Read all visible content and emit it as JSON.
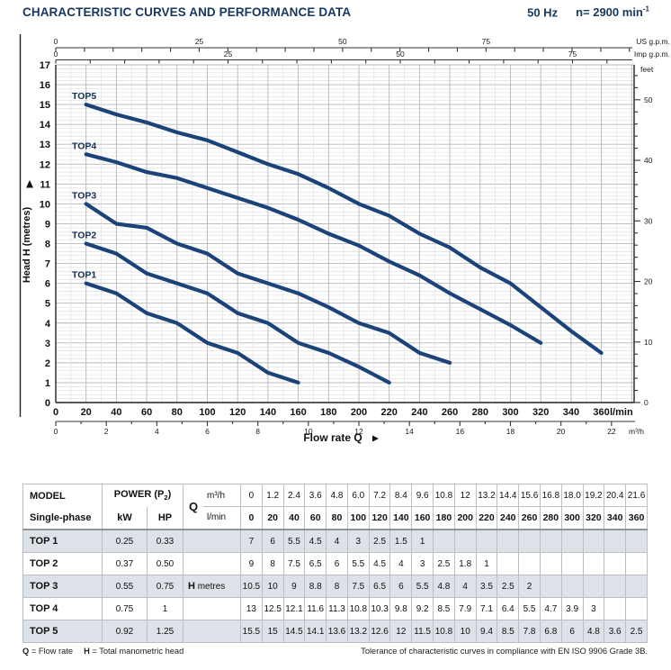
{
  "header": {
    "title": "CHARACTERISTIC CURVES AND PERFORMANCE DATA",
    "frequency": "50 Hz",
    "speed": "n= 2900 min",
    "speed_sup": "-1"
  },
  "chart_data": {
    "type": "line",
    "xlabel": "Flow rate Q",
    "x_axis_main": {
      "label": "l/min",
      "ticks": [
        0,
        20,
        40,
        60,
        80,
        100,
        120,
        140,
        160,
        180,
        200,
        220,
        240,
        260,
        280,
        300,
        320,
        340,
        360
      ],
      "range": [
        0,
        382
      ]
    },
    "x_axis_m3h": {
      "label": "m³/h",
      "ticks": [
        0,
        2,
        4,
        6,
        8,
        10,
        12,
        14,
        16,
        18,
        20,
        22
      ],
      "lmin_per_unit": 16.6667
    },
    "x_axis_usgpm": {
      "label": "US g.p.m.",
      "ticks": [
        0,
        25,
        50,
        75
      ],
      "lmin_per_unit": 3.785
    },
    "x_axis_impgpm": {
      "label": "Imp g.p.m.",
      "ticks": [
        0,
        25,
        50,
        75
      ],
      "lmin_per_unit": 4.546
    },
    "y_axis": {
      "label": "Head H (metres)",
      "ticks": [
        0,
        1,
        2,
        3,
        4,
        5,
        6,
        7,
        8,
        9,
        10,
        11,
        12,
        13,
        14,
        15,
        16,
        17
      ],
      "range": [
        0,
        17
      ]
    },
    "y_axis_right": {
      "label": "feet",
      "ticks": [
        0,
        10,
        20,
        30,
        40,
        50
      ],
      "feet_per_metre": 3.2808
    },
    "grid": {
      "x_minor": 10,
      "x_major": 20,
      "y_minor": 0.2,
      "y_major": 1
    },
    "series": [
      {
        "name": "TOP1",
        "points": [
          [
            20,
            6
          ],
          [
            40,
            5.5
          ],
          [
            60,
            4.5
          ],
          [
            80,
            4
          ],
          [
            100,
            3
          ],
          [
            120,
            2.5
          ],
          [
            140,
            1.5
          ],
          [
            160,
            1
          ]
        ]
      },
      {
        "name": "TOP2",
        "points": [
          [
            20,
            8
          ],
          [
            40,
            7.5
          ],
          [
            60,
            6.5
          ],
          [
            80,
            6
          ],
          [
            100,
            5.5
          ],
          [
            120,
            4.5
          ],
          [
            140,
            4
          ],
          [
            160,
            3
          ],
          [
            180,
            2.5
          ],
          [
            200,
            1.8
          ],
          [
            220,
            1
          ]
        ]
      },
      {
        "name": "TOP3",
        "points": [
          [
            20,
            10
          ],
          [
            40,
            9
          ],
          [
            60,
            8.8
          ],
          [
            80,
            8
          ],
          [
            100,
            7.5
          ],
          [
            120,
            6.5
          ],
          [
            140,
            6
          ],
          [
            160,
            5.5
          ],
          [
            180,
            4.8
          ],
          [
            200,
            4
          ],
          [
            220,
            3.5
          ],
          [
            240,
            2.5
          ],
          [
            260,
            2
          ]
        ]
      },
      {
        "name": "TOP4",
        "points": [
          [
            20,
            12.5
          ],
          [
            40,
            12.1
          ],
          [
            60,
            11.6
          ],
          [
            80,
            11.3
          ],
          [
            100,
            10.8
          ],
          [
            120,
            10.3
          ],
          [
            140,
            9.8
          ],
          [
            160,
            9.2
          ],
          [
            180,
            8.5
          ],
          [
            200,
            7.9
          ],
          [
            220,
            7.1
          ],
          [
            240,
            6.4
          ],
          [
            260,
            5.5
          ],
          [
            280,
            4.7
          ],
          [
            300,
            3.9
          ],
          [
            320,
            3
          ]
        ]
      },
      {
        "name": "TOP5",
        "points": [
          [
            20,
            15
          ],
          [
            40,
            14.5
          ],
          [
            60,
            14.1
          ],
          [
            80,
            13.6
          ],
          [
            100,
            13.2
          ],
          [
            120,
            12.6
          ],
          [
            140,
            12
          ],
          [
            160,
            11.5
          ],
          [
            180,
            10.8
          ],
          [
            200,
            10
          ],
          [
            220,
            9.4
          ],
          [
            240,
            8.5
          ],
          [
            260,
            7.8
          ],
          [
            280,
            6.8
          ],
          [
            300,
            6
          ],
          [
            320,
            4.8
          ],
          [
            340,
            3.6
          ],
          [
            360,
            2.5
          ]
        ]
      }
    ]
  },
  "table": {
    "header": {
      "model": "MODEL",
      "single": "Single-phase",
      "power": "POWER (P",
      "p_sub": "2",
      "p_close": ")",
      "kw": "kW",
      "hp": "HP",
      "q": "Q",
      "m3h": "m³/h",
      "lmin": "l/min",
      "h": "H",
      "metres": "metres"
    },
    "flow_m3h": [
      "0",
      "1.2",
      "2.4",
      "3.6",
      "4.8",
      "6.0",
      "7.2",
      "8.4",
      "9.6",
      "10.8",
      "12",
      "13.2",
      "14.4",
      "15.6",
      "16.8",
      "18.0",
      "19.2",
      "20.4",
      "21.6"
    ],
    "flow_lmin": [
      "0",
      "20",
      "40",
      "60",
      "80",
      "100",
      "120",
      "140",
      "160",
      "180",
      "200",
      "220",
      "240",
      "260",
      "280",
      "300",
      "320",
      "340",
      "360"
    ],
    "rows": [
      {
        "model": "TOP 1",
        "kw": "0.25",
        "hp": "0.33",
        "heads": [
          "7",
          "6",
          "5.5",
          "4.5",
          "4",
          "3",
          "2.5",
          "1.5",
          "1",
          "",
          "",
          "",
          "",
          "",
          "",
          "",
          "",
          "",
          ""
        ]
      },
      {
        "model": "TOP 2",
        "kw": "0.37",
        "hp": "0.50",
        "heads": [
          "9",
          "8",
          "7.5",
          "6.5",
          "6",
          "5.5",
          "4.5",
          "4",
          "3",
          "2.5",
          "1.8",
          "1",
          "",
          "",
          "",
          "",
          "",
          "",
          ""
        ]
      },
      {
        "model": "TOP 3",
        "kw": "0.55",
        "hp": "0.75",
        "heads": [
          "10.5",
          "10",
          "9",
          "8.8",
          "8",
          "7.5",
          "6.5",
          "6",
          "5.5",
          "4.8",
          "4",
          "3.5",
          "2.5",
          "2",
          "",
          "",
          "",
          "",
          ""
        ]
      },
      {
        "model": "TOP 4",
        "kw": "0.75",
        "hp": "1",
        "heads": [
          "13",
          "12.5",
          "12.1",
          "11.6",
          "11.3",
          "10.8",
          "10.3",
          "9.8",
          "9.2",
          "8.5",
          "7.9",
          "7.1",
          "6.4",
          "5.5",
          "4.7",
          "3.9",
          "3",
          "",
          ""
        ]
      },
      {
        "model": "TOP 5",
        "kw": "0.92",
        "hp": "1.25",
        "heads": [
          "15.5",
          "15",
          "14.5",
          "14.1",
          "13.6",
          "13.2",
          "12.6",
          "12",
          "11.5",
          "10.8",
          "10",
          "9.4",
          "8.5",
          "7.8",
          "6.8",
          "6",
          "4.8",
          "3.6",
          "2.5"
        ]
      }
    ]
  },
  "footer": {
    "q_bold": "Q",
    "q_def": " = Flow rate",
    "h_bold": "H",
    "h_def": " = Total manometric head",
    "right": "Tolerance of characteristic curves in compliance with EN ISO 9906 Grade 3B."
  },
  "colors": {
    "accent": "#17375e",
    "curve": "#1c4379",
    "row_shade": "#dce2e8",
    "grid_minor": "#e1e1e1",
    "grid_major": "#b6b6b6"
  }
}
